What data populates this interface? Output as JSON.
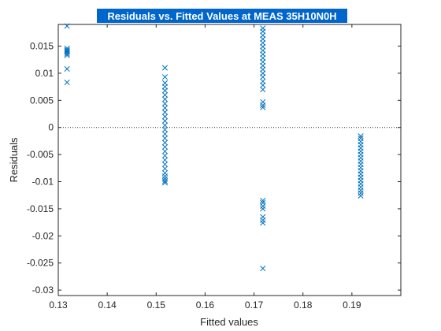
{
  "chart_data": {
    "type": "scatter",
    "title": "Residuals vs. Fitted Values at MEAS 35H10N0H",
    "xlabel": "Fitted values",
    "ylabel": "Residuals",
    "xlim": [
      0.13,
      0.2
    ],
    "ylim": [
      -0.031,
      0.019
    ],
    "xticks": [
      0.13,
      0.14,
      0.15,
      0.16,
      0.17,
      0.18,
      0.19
    ],
    "xtick_labels": [
      "0.13",
      "0.14",
      "0.15",
      "0.16",
      "0.17",
      "0.18",
      "0.19"
    ],
    "yticks": [
      0.015,
      0.01,
      0.005,
      0,
      -0.005,
      -0.01,
      -0.015,
      -0.02,
      -0.025,
      -0.03
    ],
    "ytick_labels": [
      "0.015",
      "0.01",
      "0.005",
      "0",
      "-0.005",
      "-0.01",
      "-0.015",
      "-0.02",
      "-0.025",
      "-0.03"
    ],
    "reference_line": {
      "y": 0,
      "style": "dotted"
    },
    "marker": "x",
    "grid": false,
    "colors": {
      "marker": "#0072bd",
      "title_bg": "#0066cc",
      "axis": "#262626"
    },
    "series": [
      {
        "points": [
          [
            0.1318,
            0.0187
          ],
          [
            0.1318,
            0.0146
          ],
          [
            0.1318,
            0.0143
          ],
          [
            0.1318,
            0.0141
          ],
          [
            0.1318,
            0.0139
          ],
          [
            0.1318,
            0.0136
          ],
          [
            0.1318,
            0.0133
          ],
          [
            0.1318,
            0.0108
          ],
          [
            0.1318,
            0.0083
          ],
          [
            0.1518,
            0.011
          ],
          [
            0.1518,
            0.0093
          ],
          [
            0.1518,
            0.0082
          ],
          [
            0.1518,
            0.0075
          ],
          [
            0.1518,
            0.0068
          ],
          [
            0.1518,
            0.006
          ],
          [
            0.1518,
            0.0052
          ],
          [
            0.1518,
            0.0044
          ],
          [
            0.1518,
            0.0036
          ],
          [
            0.1518,
            0.0028
          ],
          [
            0.1518,
            0.002
          ],
          [
            0.1518,
            0.0012
          ],
          [
            0.1518,
            0.0004
          ],
          [
            0.1518,
            -0.0004
          ],
          [
            0.1518,
            -0.0012
          ],
          [
            0.1518,
            -0.002
          ],
          [
            0.1518,
            -0.0028
          ],
          [
            0.1518,
            -0.0036
          ],
          [
            0.1518,
            -0.0044
          ],
          [
            0.1518,
            -0.0052
          ],
          [
            0.1518,
            -0.006
          ],
          [
            0.1518,
            -0.0068
          ],
          [
            0.1518,
            -0.0076
          ],
          [
            0.1518,
            -0.0084
          ],
          [
            0.1518,
            -0.009
          ],
          [
            0.1518,
            -0.0095
          ],
          [
            0.1518,
            -0.0099
          ],
          [
            0.1518,
            -0.0102
          ],
          [
            0.1718,
            0.0183
          ],
          [
            0.1718,
            0.0177
          ],
          [
            0.1718,
            0.017
          ],
          [
            0.1718,
            0.0163
          ],
          [
            0.1718,
            0.0156
          ],
          [
            0.1718,
            0.0149
          ],
          [
            0.1718,
            0.0142
          ],
          [
            0.1718,
            0.0135
          ],
          [
            0.1718,
            0.0128
          ],
          [
            0.1718,
            0.0121
          ],
          [
            0.1718,
            0.0114
          ],
          [
            0.1718,
            0.0107
          ],
          [
            0.1718,
            0.01
          ],
          [
            0.1718,
            0.0093
          ],
          [
            0.1718,
            0.0085
          ],
          [
            0.1718,
            0.0078
          ],
          [
            0.1718,
            0.007
          ],
          [
            0.1718,
            0.0047
          ],
          [
            0.1718,
            0.0041
          ],
          [
            0.1718,
            0.0037
          ],
          [
            0.1718,
            -0.0135
          ],
          [
            0.1718,
            -0.0139
          ],
          [
            0.1718,
            -0.0145
          ],
          [
            0.1718,
            -0.015
          ],
          [
            0.1718,
            -0.0165
          ],
          [
            0.1718,
            -0.0171
          ],
          [
            0.1718,
            -0.0176
          ],
          [
            0.1718,
            -0.026
          ],
          [
            0.1918,
            -0.0016
          ],
          [
            0.1918,
            -0.002
          ],
          [
            0.1918,
            -0.0026
          ],
          [
            0.1918,
            -0.0032
          ],
          [
            0.1918,
            -0.0038
          ],
          [
            0.1918,
            -0.0044
          ],
          [
            0.1918,
            -0.005
          ],
          [
            0.1918,
            -0.0056
          ],
          [
            0.1918,
            -0.0062
          ],
          [
            0.1918,
            -0.0068
          ],
          [
            0.1918,
            -0.0074
          ],
          [
            0.1918,
            -0.008
          ],
          [
            0.1918,
            -0.0086
          ],
          [
            0.1918,
            -0.0092
          ],
          [
            0.1918,
            -0.0098
          ],
          [
            0.1918,
            -0.0104
          ],
          [
            0.1918,
            -0.011
          ],
          [
            0.1918,
            -0.0116
          ],
          [
            0.1918,
            -0.0121
          ],
          [
            0.1918,
            -0.0126
          ]
        ]
      }
    ]
  }
}
